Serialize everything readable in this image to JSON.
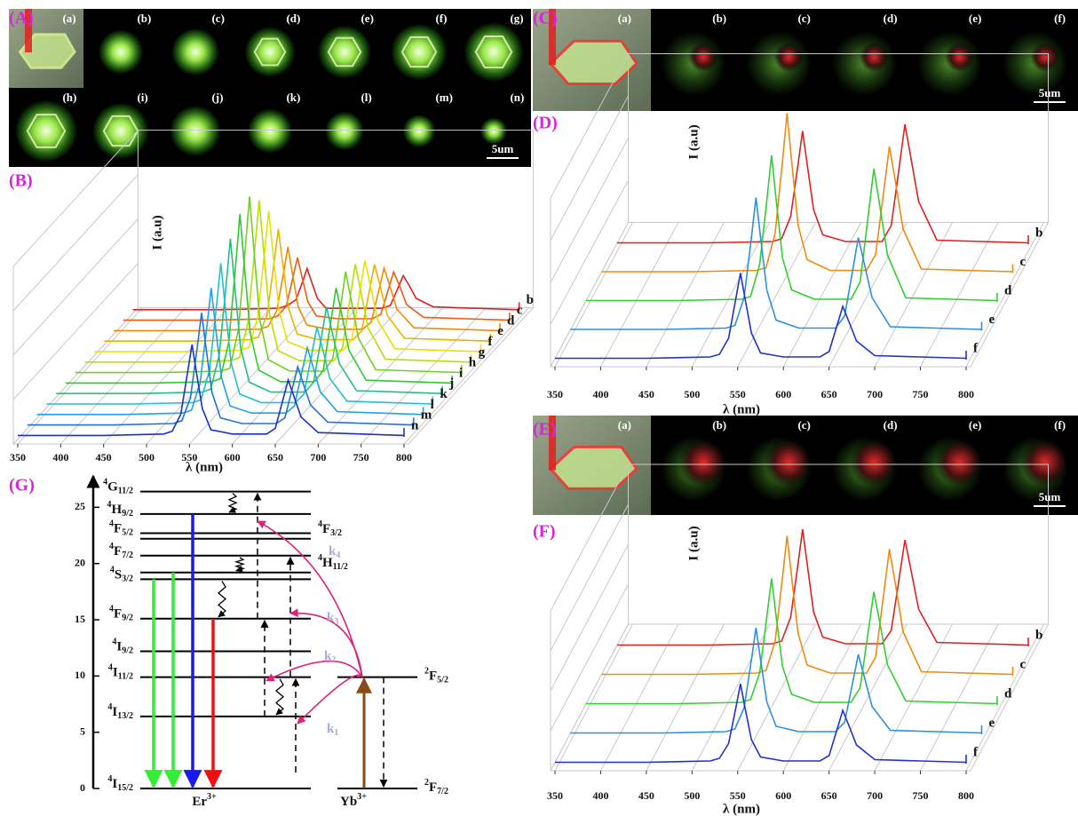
{
  "image_panels": [
    {
      "label": "(A)",
      "tiles": [
        "(a)",
        "(b)",
        "(c)",
        "(d)",
        "(e)",
        "(f)",
        "(g)",
        "(h)",
        "(i)",
        "(j)",
        "(k)",
        "(l)",
        "(m)",
        "(n)"
      ],
      "scale_bar": "5um"
    },
    {
      "label": "(C)",
      "tiles": [
        "(a)",
        "(b)",
        "(c)",
        "(d)",
        "(e)",
        "(f)"
      ],
      "scale_bar": "5um"
    },
    {
      "label": "(E)",
      "tiles": [
        "(a)",
        "(b)",
        "(c)",
        "(d)",
        "(e)",
        "(f)"
      ],
      "scale_bar": "5um"
    }
  ],
  "chart_data": [
    {
      "type": "waterfall",
      "panel": "(B)",
      "x_label": "λ (nm)",
      "y_label": "I (a.u)",
      "xlim": [
        350,
        800
      ],
      "xticks": [
        350,
        400,
        450,
        500,
        550,
        600,
        650,
        700,
        750,
        800
      ],
      "x": [
        350,
        450,
        520,
        530,
        540,
        548,
        553,
        558,
        565,
        575,
        600,
        640,
        650,
        658,
        665,
        672,
        680,
        700,
        750,
        800
      ],
      "series": [
        {
          "name": "b",
          "color": "#e02020",
          "values": [
            1,
            1,
            2,
            4,
            8,
            21,
            30,
            21,
            9,
            2,
            2,
            2,
            4,
            15,
            25,
            18,
            9,
            3,
            2,
            1
          ]
        },
        {
          "name": "c",
          "color": "#f05a10",
          "values": [
            1,
            1,
            2,
            4,
            11,
            32,
            45,
            32,
            14,
            4,
            2,
            2,
            5,
            21,
            35,
            25,
            12,
            3,
            2,
            1
          ]
        },
        {
          "name": "d",
          "color": "#f08a00",
          "values": [
            1,
            1,
            2,
            4,
            15,
            42,
            60,
            42,
            18,
            5,
            2,
            2,
            7,
            27,
            45,
            32,
            16,
            3,
            2,
            1
          ]
        },
        {
          "name": "e",
          "color": "#f0b000",
          "values": [
            1,
            1,
            2,
            4,
            20,
            56,
            80,
            56,
            24,
            6,
            2,
            2,
            8,
            33,
            55,
            39,
            19,
            3,
            2,
            1
          ]
        },
        {
          "name": "f",
          "color": "#e8e000",
          "values": [
            1,
            1,
            2,
            4,
            25,
            70,
            100,
            70,
            30,
            8,
            2,
            2,
            10,
            39,
            65,
            46,
            23,
            3,
            2,
            1
          ]
        },
        {
          "name": "g",
          "color": "#b8e000",
          "values": [
            1,
            1,
            2,
            4,
            29,
            81,
            115,
            81,
            35,
            9,
            2,
            2,
            11,
            42,
            70,
            49,
            25,
            3,
            2,
            1
          ]
        },
        {
          "name": "h",
          "color": "#70d020",
          "values": [
            1,
            1,
            2,
            4,
            31,
            88,
            125,
            88,
            38,
            10,
            2,
            2,
            11,
            43,
            72,
            50,
            25,
            3,
            2,
            1
          ]
        },
        {
          "name": "i",
          "color": "#30c830",
          "values": [
            1,
            1,
            2,
            4,
            30,
            84,
            120,
            84,
            36,
            10,
            2,
            2,
            10,
            41,
            68,
            48,
            24,
            3,
            2,
            1
          ]
        },
        {
          "name": "j",
          "color": "#20c080",
          "values": [
            1,
            1,
            2,
            4,
            28,
            77,
            110,
            77,
            33,
            9,
            2,
            2,
            9,
            37,
            62,
            43,
            22,
            3,
            2,
            1
          ]
        },
        {
          "name": "k",
          "color": "#20c0d0",
          "values": [
            1,
            1,
            2,
            4,
            25,
            70,
            100,
            70,
            30,
            8,
            2,
            2,
            8,
            33,
            55,
            39,
            19,
            3,
            2,
            1
          ]
        },
        {
          "name": "l",
          "color": "#20a0e8",
          "values": [
            1,
            1,
            2,
            4,
            23,
            63,
            90,
            63,
            27,
            7,
            2,
            2,
            7,
            29,
            48,
            34,
            17,
            3,
            2,
            1
          ]
        },
        {
          "name": "m",
          "color": "#2070e0",
          "values": [
            1,
            1,
            2,
            4,
            20,
            56,
            80,
            56,
            24,
            6,
            2,
            2,
            6,
            25,
            42,
            29,
            15,
            3,
            2,
            1
          ]
        },
        {
          "name": "n",
          "color": "#1a2fd0",
          "values": [
            1,
            1,
            2,
            4,
            16,
            46,
            65,
            46,
            20,
            5,
            2,
            2,
            6,
            24,
            40,
            28,
            14,
            3,
            2,
            1
          ]
        }
      ]
    },
    {
      "type": "waterfall",
      "panel": "(D)",
      "x_label": "λ (nm)",
      "y_label": "I (a.u)",
      "xlim": [
        350,
        800
      ],
      "xticks": [
        350,
        400,
        450,
        500,
        550,
        600,
        650,
        700,
        750,
        800
      ],
      "x": [
        350,
        450,
        520,
        530,
        540,
        548,
        553,
        558,
        565,
        575,
        600,
        640,
        650,
        658,
        665,
        672,
        680,
        700,
        750,
        800
      ],
      "series": [
        {
          "name": "b",
          "color": "#e02020",
          "values": [
            1,
            1,
            2,
            4,
            21,
            60,
            85,
            60,
            26,
            7,
            2,
            2,
            14,
            54,
            90,
            63,
            32,
            3,
            2,
            1
          ]
        },
        {
          "name": "c",
          "color": "#f08a10",
          "values": [
            1,
            1,
            2,
            4,
            30,
            84,
            120,
            84,
            36,
            10,
            2,
            2,
            14,
            57,
            95,
            67,
            33,
            3,
            2,
            1
          ]
        },
        {
          "name": "d",
          "color": "#30d030",
          "values": [
            1,
            1,
            2,
            4,
            28,
            77,
            110,
            77,
            33,
            9,
            2,
            2,
            15,
            60,
            100,
            70,
            35,
            3,
            2,
            1
          ]
        },
        {
          "name": "e",
          "color": "#2a90e0",
          "values": [
            1,
            1,
            2,
            4,
            25,
            70,
            100,
            70,
            30,
            8,
            2,
            2,
            11,
            42,
            70,
            49,
            25,
            3,
            2,
            1
          ]
        },
        {
          "name": "f",
          "color": "#2030d0",
          "values": [
            1,
            1,
            2,
            4,
            16,
            46,
            65,
            46,
            20,
            5,
            2,
            2,
            6,
            24,
            40,
            28,
            14,
            3,
            2,
            1
          ]
        }
      ]
    },
    {
      "type": "waterfall",
      "panel": "(F)",
      "x_label": "λ (nm)",
      "y_label": "I (a.u)",
      "xlim": [
        350,
        800
      ],
      "xticks": [
        350,
        400,
        450,
        500,
        550,
        600,
        650,
        700,
        750,
        800
      ],
      "x": [
        350,
        450,
        520,
        530,
        540,
        548,
        553,
        558,
        565,
        575,
        600,
        640,
        650,
        658,
        665,
        672,
        680,
        700,
        750,
        800
      ],
      "series": [
        {
          "name": "b",
          "color": "#e02020",
          "values": [
            1,
            1,
            2,
            4,
            22,
            62,
            88,
            62,
            26,
            7,
            2,
            2,
            12,
            48,
            80,
            56,
            28,
            3,
            2,
            1
          ]
        },
        {
          "name": "c",
          "color": "#f08a10",
          "values": [
            1,
            1,
            2,
            4,
            26,
            74,
            105,
            74,
            32,
            8,
            2,
            2,
            14,
            57,
            95,
            67,
            33,
            3,
            2,
            1
          ]
        },
        {
          "name": "d",
          "color": "#30d030",
          "values": [
            1,
            1,
            2,
            4,
            24,
            67,
            95,
            67,
            29,
            8,
            2,
            2,
            13,
            51,
            85,
            60,
            30,
            3,
            2,
            1
          ]
        },
        {
          "name": "e",
          "color": "#2a90e0",
          "values": [
            1,
            1,
            2,
            4,
            20,
            56,
            80,
            56,
            24,
            6,
            2,
            2,
            9,
            36,
            60,
            42,
            21,
            3,
            2,
            1
          ]
        },
        {
          "name": "f",
          "color": "#2030d0",
          "values": [
            1,
            1,
            2,
            4,
            15,
            42,
            60,
            42,
            18,
            5,
            2,
            2,
            6,
            24,
            40,
            28,
            14,
            3,
            2,
            1
          ]
        }
      ]
    },
    {
      "type": "energy_levels",
      "panel": "(G)",
      "ylim": [
        0,
        27
      ],
      "yticks": [
        0,
        5,
        10,
        15,
        20,
        25
      ],
      "er_levels": [
        {
          "sup": "4",
          "term": "I",
          "sub": "15/2",
          "energy": 0
        },
        {
          "sup": "4",
          "term": "I",
          "sub": "13/2",
          "energy": 6.4
        },
        {
          "sup": "4",
          "term": "I",
          "sub": "11/2",
          "energy": 9.9
        },
        {
          "sup": "4",
          "term": "I",
          "sub": "9/2",
          "energy": 12.2
        },
        {
          "sup": "4",
          "term": "F",
          "sub": "9/2",
          "energy": 15.1
        },
        {
          "sup": "4",
          "term": "S",
          "sub": "3/2",
          "energy": 18.6
        },
        {
          "sup": "4",
          "term": "H",
          "sub": "11/2",
          "energy": 19.2
        },
        {
          "sup": "4",
          "term": "F",
          "sub": "7/2",
          "energy": 20.7
        },
        {
          "sup": "4",
          "term": "F",
          "sub": "3/2",
          "energy": 22.2
        },
        {
          "sup": "4",
          "term": "F",
          "sub": "5/2",
          "energy": 22.7
        },
        {
          "sup": "4",
          "term": "H",
          "sub": "9/2",
          "energy": 24.4
        },
        {
          "sup": "4",
          "term": "G",
          "sub": "11/2",
          "energy": 26.4
        }
      ],
      "yb_levels": [
        {
          "sup": "2",
          "term": "F",
          "sub": "7/2",
          "energy": 0
        },
        {
          "sup": "2",
          "term": "F",
          "sub": "5/2",
          "energy": 9.9
        }
      ],
      "er_ion": {
        "main": "Er",
        "sup": "3+"
      },
      "yb_ion": {
        "main": "Yb",
        "sup": "3+"
      },
      "emissions": [
        {
          "from": 5,
          "color": "#33ee33"
        },
        {
          "from": 6,
          "color": "#33ee33"
        },
        {
          "from": 10,
          "color": "#1a1aee"
        },
        {
          "from": 4,
          "color": "#ee1111"
        }
      ],
      "transfers": [
        {
          "main": "k",
          "sub": "1",
          "to": 1
        },
        {
          "main": "k",
          "sub": "2",
          "to": 2
        },
        {
          "main": "k",
          "sub": "3",
          "to": 4
        },
        {
          "main": "k",
          "sub": "4",
          "to": 10
        }
      ]
    }
  ]
}
